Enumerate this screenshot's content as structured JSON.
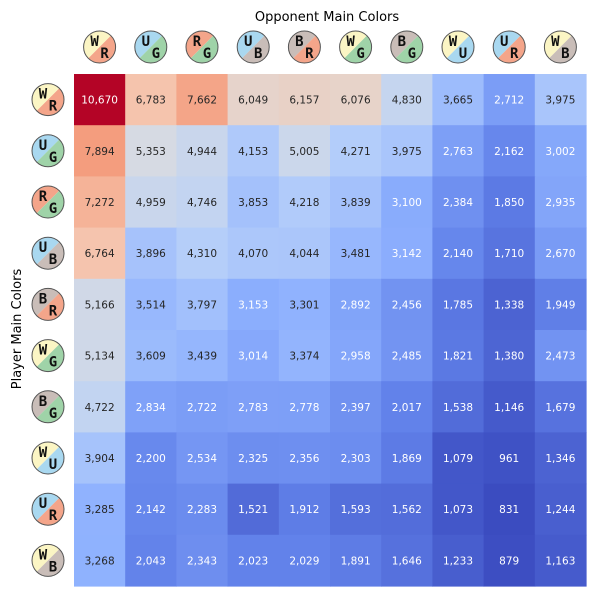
{
  "chart_data": {
    "type": "heatmap",
    "title": "",
    "xlabel": "Opponent Main Colors",
    "ylabel": "Player Main Colors",
    "x_categories": [
      "WR",
      "UG",
      "RG",
      "UB",
      "BR",
      "WG",
      "BG",
      "WU",
      "UR",
      "WB"
    ],
    "y_categories": [
      "WR",
      "UG",
      "RG",
      "UB",
      "BR",
      "WG",
      "BG",
      "WU",
      "UR",
      "WB"
    ],
    "values": [
      [
        10670,
        6783,
        7662,
        6049,
        6157,
        6076,
        4830,
        3665,
        2712,
        3975
      ],
      [
        7894,
        5353,
        4944,
        4153,
        5005,
        4271,
        3975,
        2763,
        2162,
        3002
      ],
      [
        7272,
        4959,
        4746,
        3853,
        4218,
        3839,
        3100,
        2384,
        1850,
        2935
      ],
      [
        6764,
        3896,
        4310,
        4070,
        4044,
        3481,
        3142,
        2140,
        1710,
        2670
      ],
      [
        5166,
        3514,
        3797,
        3153,
        3301,
        2892,
        2456,
        1785,
        1338,
        1949
      ],
      [
        5134,
        3609,
        3439,
        3014,
        3374,
        2958,
        2485,
        1821,
        1380,
        2473
      ],
      [
        4722,
        2834,
        2722,
        2783,
        2778,
        2397,
        2017,
        1538,
        1146,
        1679
      ],
      [
        3904,
        2200,
        2534,
        2325,
        2356,
        2303,
        1869,
        1079,
        961,
        1346
      ],
      [
        3285,
        2142,
        2283,
        1521,
        1912,
        1593,
        1562,
        1073,
        831,
        1244
      ],
      [
        3268,
        2043,
        2343,
        2023,
        2029,
        1891,
        1646,
        1233,
        879,
        1163
      ]
    ],
    "colormap": "coolwarm",
    "grid": false,
    "legend": "none",
    "mana_colors": {
      "W": "#fbf5c4",
      "U": "#a9d8f0",
      "R": "#f4a58a",
      "G": "#9fd3a8",
      "B": "#c9bdb8"
    }
  }
}
